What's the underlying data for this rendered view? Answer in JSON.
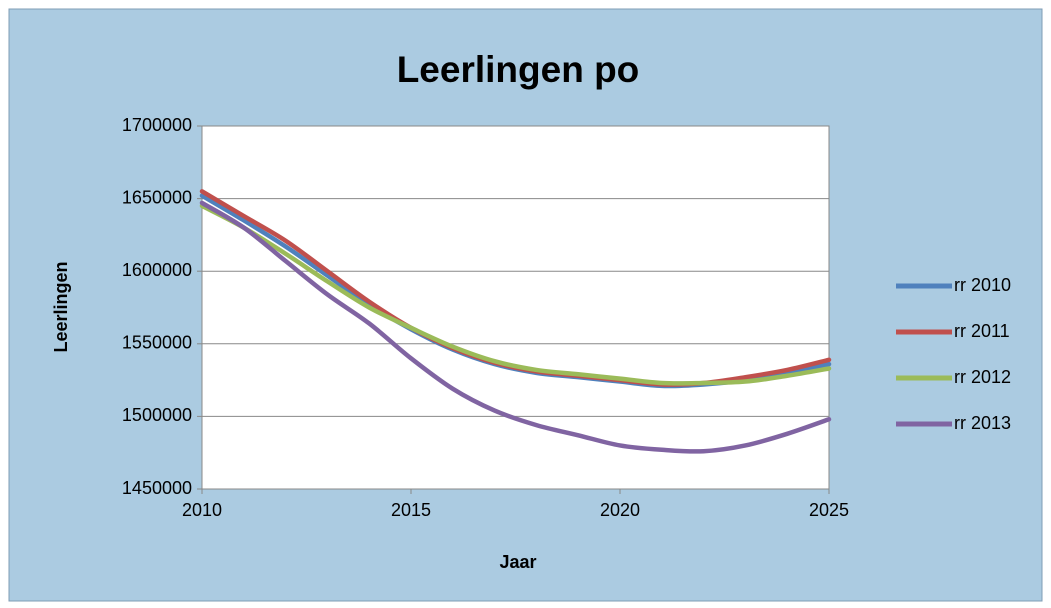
{
  "chart_data": {
    "type": "line",
    "title": "Leerlingen po",
    "x_label": "Jaar",
    "y_label": "Leerlingen",
    "x": [
      2010,
      2011,
      2012,
      2013,
      2014,
      2015,
      2016,
      2017,
      2018,
      2019,
      2020,
      2021,
      2022,
      2023,
      2024,
      2025
    ],
    "series": [
      {
        "name": "rr 2010",
        "color": "#4f81bd",
        "values": [
          1652000,
          1635000,
          1617000,
          1597000,
          1577000,
          1560000,
          1546000,
          1536000,
          1530000,
          1527000,
          1524000,
          1521000,
          1522000,
          1525000,
          1530000,
          1536000
        ]
      },
      {
        "name": "rr 2011",
        "color": "#c0504d",
        "values": [
          1655000,
          1638000,
          1621000,
          1600000,
          1579000,
          1561000,
          1547000,
          1537000,
          1531000,
          1528000,
          1525000,
          1522000,
          1523000,
          1527000,
          1532000,
          1539000
        ]
      },
      {
        "name": "rr 2012",
        "color": "#9bbb59",
        "values": [
          1645000,
          1630000,
          1612000,
          1593000,
          1575000,
          1561000,
          1548000,
          1538000,
          1532000,
          1529000,
          1526000,
          1523000,
          1523000,
          1524000,
          1528000,
          1533000
        ]
      },
      {
        "name": "rr 2013",
        "color": "#8064a2",
        "values": [
          1647000,
          1630000,
          1607000,
          1584000,
          1564000,
          1540000,
          1519000,
          1504000,
          1494000,
          1487000,
          1480000,
          1477000,
          1476000,
          1480000,
          1488000,
          1498000
        ]
      }
    ],
    "xlim": [
      2010,
      2025
    ],
    "xticks": [
      2010,
      2015,
      2020,
      2025
    ],
    "ylim": [
      1450000,
      1700000
    ],
    "yticks": [
      1450000,
      1500000,
      1550000,
      1600000,
      1650000,
      1700000
    ],
    "grid": true,
    "legend": "right"
  }
}
